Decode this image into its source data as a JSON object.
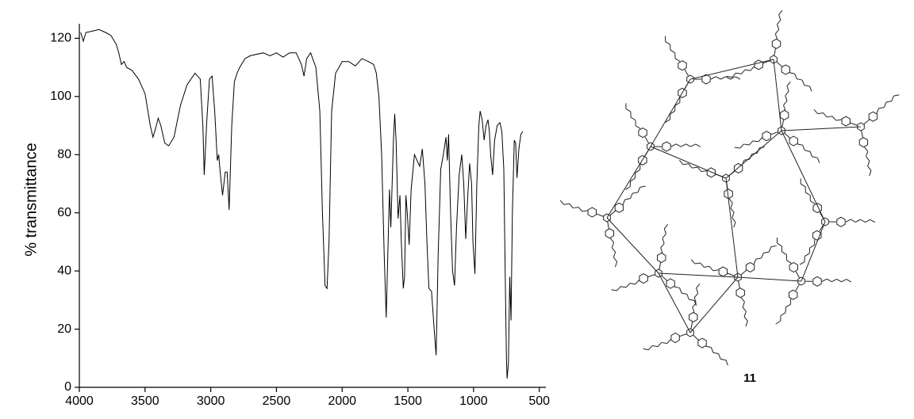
{
  "chart_data": {
    "type": "line",
    "y_label": "% transmittance",
    "compound_label": "11",
    "color": "#000000",
    "xlim": [
      4000,
      450
    ],
    "xticks": [
      4000,
      3500,
      3000,
      2500,
      2000,
      1500,
      1000,
      500
    ],
    "ylim": [
      0,
      125
    ],
    "yticks": [
      0,
      20,
      40,
      60,
      80,
      100,
      120
    ],
    "grid": false,
    "x": [
      3990,
      3970,
      3950,
      3900,
      3850,
      3800,
      3760,
      3720,
      3700,
      3680,
      3660,
      3640,
      3600,
      3550,
      3500,
      3460,
      3440,
      3420,
      3400,
      3380,
      3350,
      3320,
      3280,
      3230,
      3180,
      3120,
      3080,
      3060,
      3050,
      3030,
      3010,
      2990,
      2970,
      2950,
      2940,
      2930,
      2910,
      2890,
      2875,
      2860,
      2840,
      2820,
      2800,
      2780,
      2740,
      2700,
      2600,
      2550,
      2500,
      2450,
      2400,
      2350,
      2310,
      2290,
      2270,
      2240,
      2200,
      2170,
      2150,
      2130,
      2115,
      2100,
      2080,
      2050,
      2000,
      1950,
      1900,
      1850,
      1800,
      1760,
      1740,
      1720,
      1700,
      1680,
      1665,
      1650,
      1640,
      1630,
      1610,
      1600,
      1590,
      1575,
      1560,
      1550,
      1535,
      1525,
      1515,
      1505,
      1490,
      1475,
      1450,
      1430,
      1410,
      1390,
      1370,
      1355,
      1340,
      1320,
      1300,
      1285,
      1270,
      1250,
      1230,
      1210,
      1200,
      1190,
      1175,
      1160,
      1145,
      1130,
      1110,
      1090,
      1075,
      1060,
      1045,
      1030,
      1015,
      1005,
      990,
      975,
      960,
      950,
      935,
      920,
      905,
      890,
      880,
      870,
      855,
      840,
      820,
      800,
      785,
      770,
      760,
      750,
      745,
      735,
      725,
      715,
      705,
      690,
      680,
      670,
      655,
      640,
      625
    ],
    "values": [
      122,
      119,
      122,
      122.5,
      123,
      122,
      121,
      118,
      115,
      111,
      112,
      110,
      109,
      106,
      101,
      90,
      86,
      89,
      92.5,
      90,
      84,
      83,
      86,
      97,
      104,
      108,
      106,
      90,
      73,
      92,
      106,
      107,
      95,
      78,
      80,
      75,
      66,
      74,
      74,
      61,
      90,
      105,
      108,
      110,
      113,
      114,
      115,
      114,
      115,
      113.5,
      115,
      115,
      111,
      107,
      113,
      115,
      110,
      95,
      60,
      35,
      34,
      50,
      95,
      108,
      112,
      112,
      110.5,
      113,
      112,
      111,
      108,
      100,
      80,
      45,
      24,
      50,
      68,
      55,
      85,
      94,
      85,
      58,
      66,
      50,
      34,
      38,
      66,
      60,
      49,
      68,
      80,
      78,
      76,
      82,
      70,
      50,
      34,
      33,
      20,
      11,
      45,
      75,
      80,
      86,
      78,
      87,
      60,
      40,
      35,
      55,
      73,
      80,
      70,
      51,
      65,
      77,
      70,
      50,
      39,
      70,
      90,
      95,
      92,
      85,
      90,
      92,
      88,
      80,
      73,
      85,
      90,
      91,
      88,
      75,
      40,
      10,
      3,
      8,
      38,
      23,
      60,
      85,
      84,
      72,
      82,
      87,
      88
    ]
  }
}
